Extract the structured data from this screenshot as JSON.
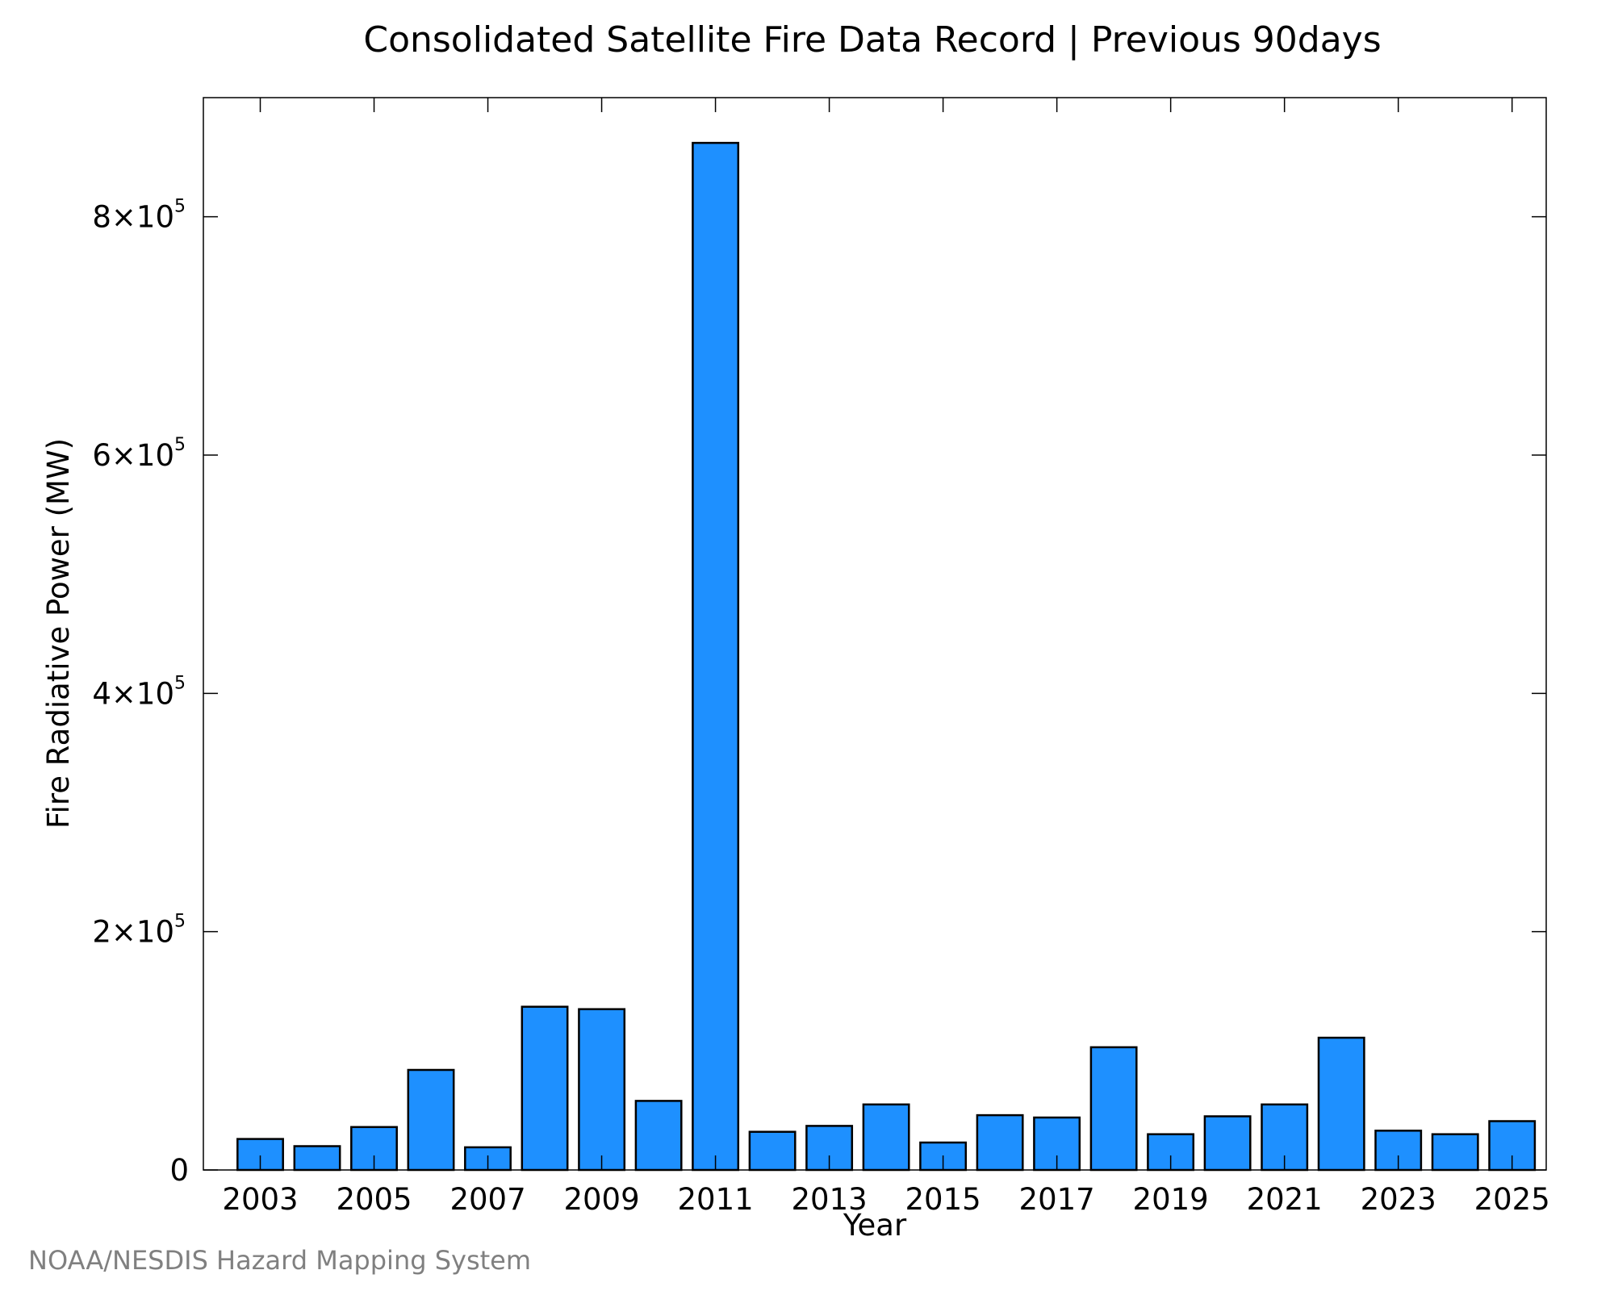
{
  "chart_data": {
    "type": "bar",
    "title": "Consolidated Satellite Fire Data Record | Previous 90days",
    "xlabel": "Year",
    "ylabel": "Fire Radiative Power (MW)",
    "credit": "NOAA/NESDIS Hazard Mapping System",
    "bar_color": "#1e90ff",
    "bar_edge_color": "#000000",
    "categories": [
      2003,
      2004,
      2005,
      2006,
      2007,
      2008,
      2009,
      2010,
      2011,
      2012,
      2013,
      2014,
      2015,
      2016,
      2017,
      2018,
      2019,
      2020,
      2021,
      2022,
      2023,
      2024,
      2025
    ],
    "values": [
      26000,
      20000,
      36000,
      84000,
      19000,
      137000,
      135000,
      58000,
      862000,
      32000,
      37000,
      55000,
      23000,
      46000,
      44000,
      103000,
      30000,
      45000,
      55000,
      111000,
      33000,
      30000,
      41000
    ],
    "xlim": [
      2002,
      2025.6
    ],
    "ylim": [
      0,
      900000
    ],
    "xticks": [
      2003,
      2005,
      2007,
      2009,
      2011,
      2013,
      2015,
      2017,
      2019,
      2021,
      2023,
      2025
    ],
    "xtick_labels": [
      "2003",
      "2005",
      "2007",
      "2009",
      "2011",
      "2013",
      "2015",
      "2017",
      "2019",
      "2021",
      "2023",
      "2025"
    ],
    "yticks": [
      0,
      200000,
      400000,
      600000,
      800000
    ],
    "ytick_labels": [
      {
        "mantissa": "0",
        "exponent": ""
      },
      {
        "mantissa": "2×10",
        "exponent": "5"
      },
      {
        "mantissa": "4×10",
        "exponent": "5"
      },
      {
        "mantissa": "6×10",
        "exponent": "5"
      },
      {
        "mantissa": "8×10",
        "exponent": "5"
      }
    ],
    "grid": false,
    "legend": "none"
  }
}
